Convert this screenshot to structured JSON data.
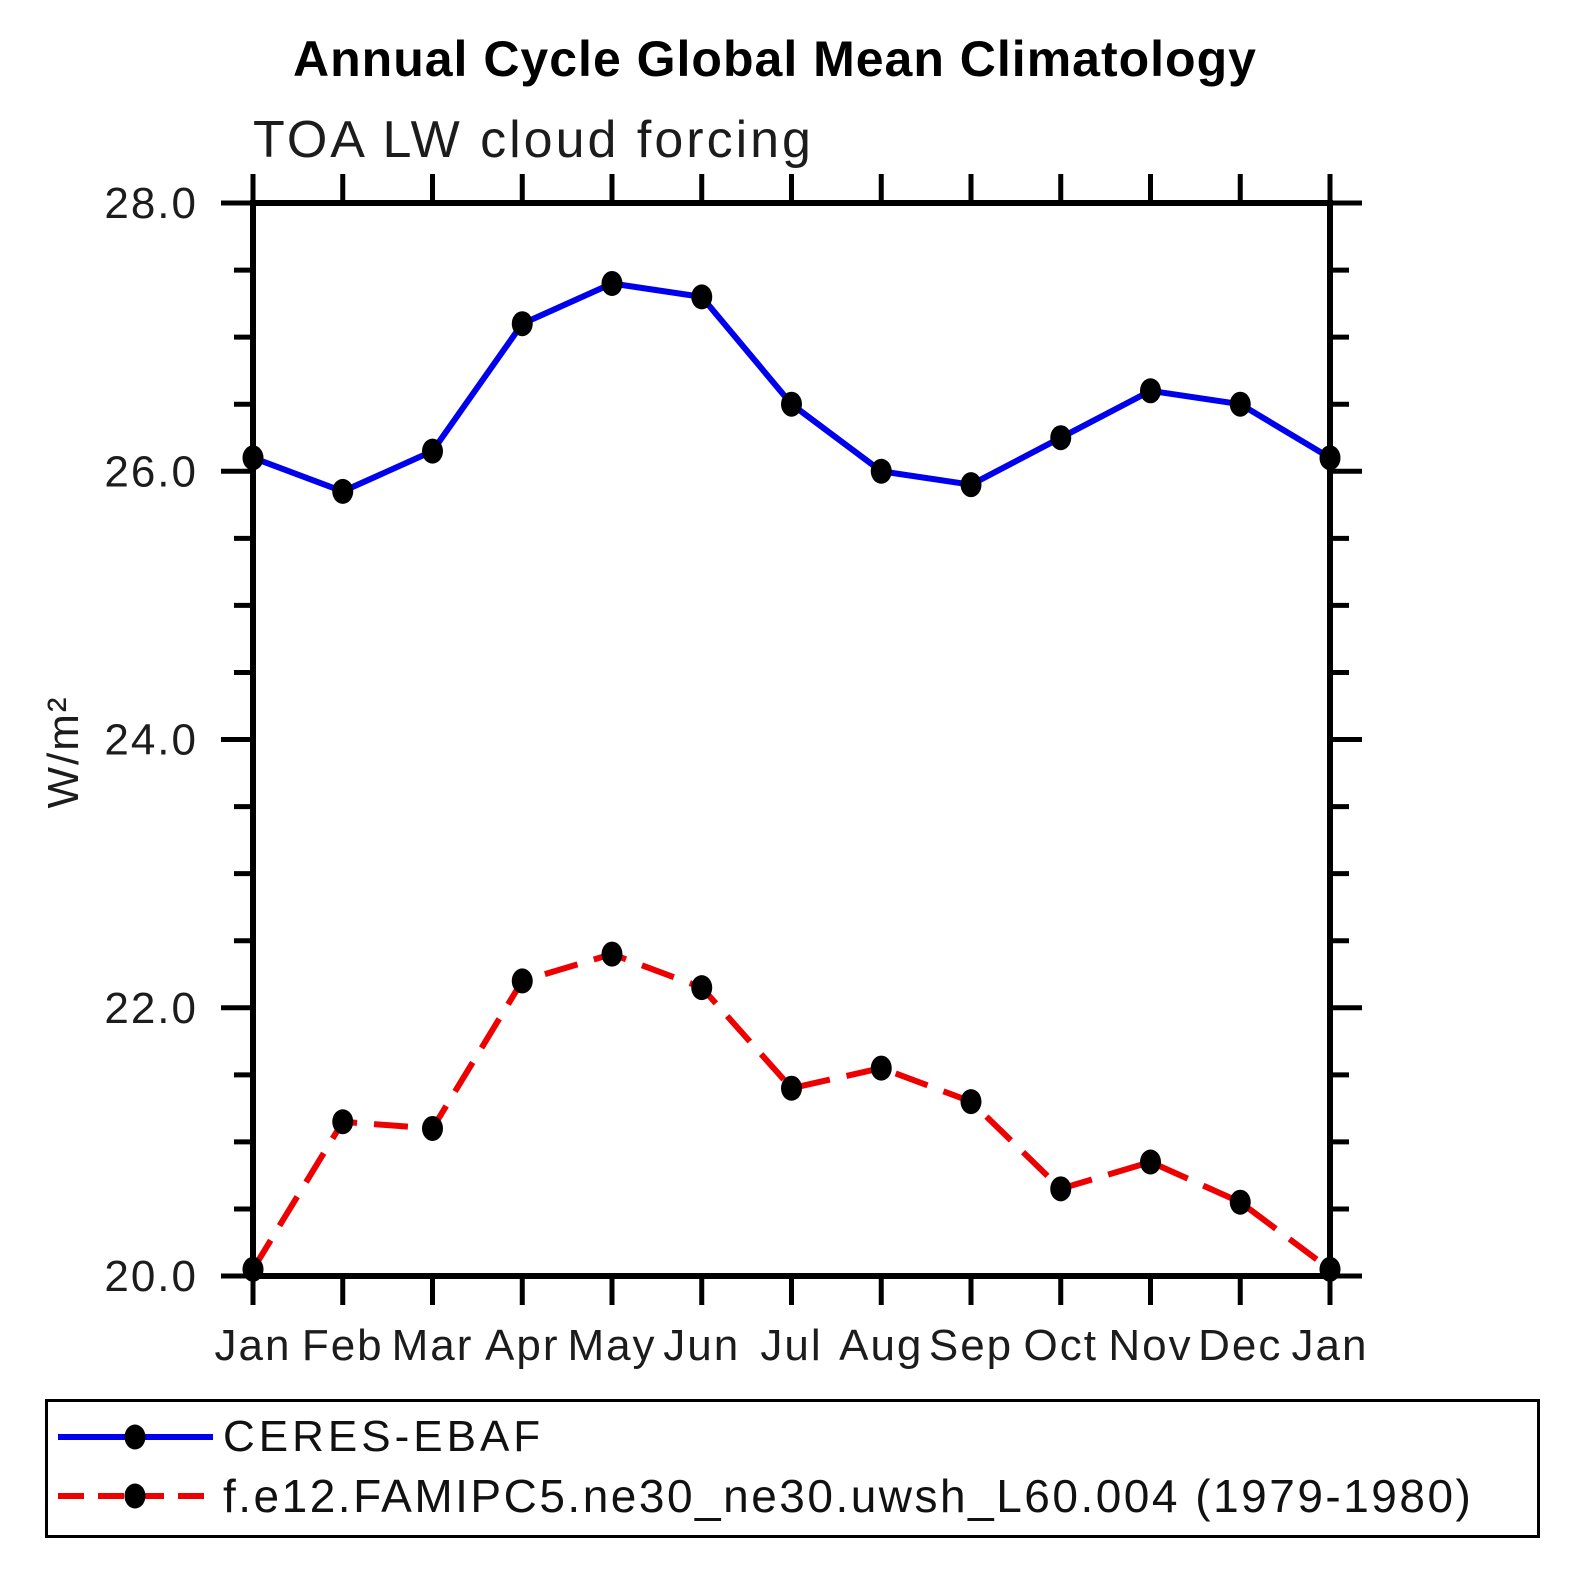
{
  "title": "Annual Cycle Global Mean Climatology",
  "subtitle": "TOA LW cloud forcing",
  "ylabel": "W/m²",
  "chart_data": {
    "type": "line",
    "categories": [
      "Jan",
      "Feb",
      "Mar",
      "Apr",
      "May",
      "Jun",
      "Jul",
      "Aug",
      "Sep",
      "Oct",
      "Nov",
      "Dec",
      "Jan"
    ],
    "xlabel": "",
    "ylabel": "W/m²",
    "ylim": [
      20.0,
      28.0
    ],
    "ytick_major_interval": 2.0,
    "ytick_minor_interval": 0.5,
    "ytick_labels": [
      "20.0",
      "22.0",
      "24.0",
      "26.0",
      "28.0"
    ],
    "grid": false,
    "legend_position": "bottom-box",
    "axis_color": "#000000",
    "series": [
      {
        "name": "CERES-EBAF",
        "line_color": "#0000ee",
        "line_style": "solid",
        "marker": "filled-circle",
        "marker_color": "#000000",
        "values": [
          26.1,
          25.85,
          26.15,
          27.1,
          27.4,
          27.3,
          26.5,
          26.0,
          25.9,
          26.25,
          26.6,
          26.5,
          26.1
        ]
      },
      {
        "name": "f.e12.FAMIPC5.ne30_ne30.uwsh_L60.004 (1979-1980)",
        "line_color": "#ee0000",
        "line_style": "dashed",
        "marker": "filled-circle",
        "marker_color": "#000000",
        "values": [
          20.05,
          21.15,
          21.1,
          22.2,
          22.4,
          22.15,
          21.4,
          21.55,
          21.3,
          20.65,
          20.85,
          20.55,
          20.05
        ]
      }
    ]
  }
}
